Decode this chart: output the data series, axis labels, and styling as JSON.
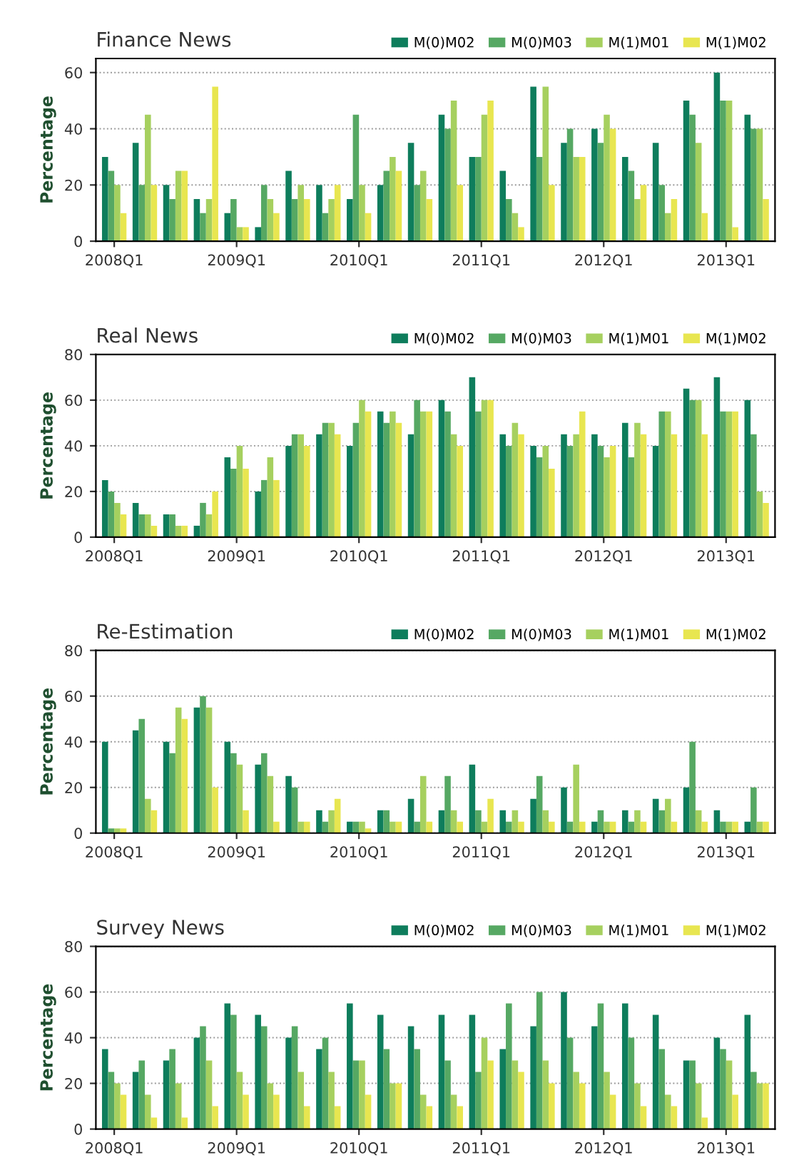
{
  "chart_data": [
    {
      "type": "bar",
      "title": "Finance News",
      "ylabel": "Percentage",
      "categories": [
        "2008Q1",
        null,
        null,
        null,
        "2009Q1",
        null,
        null,
        null,
        "2010Q1",
        null,
        null,
        null,
        "2011Q1",
        null,
        null,
        null,
        "2012Q1",
        null,
        null,
        null,
        "2013Q1",
        null
      ],
      "series": [
        {
          "name": "M(0)M02",
          "color": "#0e7d5c",
          "values": [
            30,
            35,
            20,
            15,
            10,
            5,
            25,
            20,
            15,
            20,
            35,
            45,
            30,
            25,
            55,
            35,
            40,
            30,
            35,
            50,
            60,
            45
          ]
        },
        {
          "name": "M(0)M03",
          "color": "#56a863",
          "values": [
            25,
            20,
            15,
            10,
            15,
            20,
            15,
            10,
            45,
            25,
            20,
            40,
            30,
            15,
            30,
            40,
            35,
            25,
            20,
            45,
            50,
            40
          ]
        },
        {
          "name": "M(1)M01",
          "color": "#a6d05f",
          "values": [
            20,
            45,
            25,
            15,
            5,
            15,
            20,
            15,
            20,
            30,
            25,
            50,
            45,
            10,
            55,
            30,
            45,
            15,
            10,
            35,
            50,
            40
          ]
        },
        {
          "name": "M(1)M02",
          "color": "#e8e650",
          "values": [
            10,
            20,
            25,
            55,
            5,
            10,
            15,
            20,
            10,
            25,
            15,
            20,
            50,
            5,
            20,
            30,
            40,
            20,
            15,
            10,
            5,
            15
          ]
        }
      ],
      "ylim": [
        0,
        65
      ],
      "yticks": [
        0,
        20,
        40,
        60
      ],
      "grid": "y",
      "legend": "top right"
    },
    {
      "type": "bar",
      "title": "Real News",
      "ylabel": "Percentage",
      "categories": [
        "2008Q1",
        null,
        null,
        null,
        "2009Q1",
        null,
        null,
        null,
        "2010Q1",
        null,
        null,
        null,
        "2011Q1",
        null,
        null,
        null,
        "2012Q1",
        null,
        null,
        null,
        "2013Q1",
        null
      ],
      "series": [
        {
          "name": "M(0)M02",
          "color": "#0e7d5c",
          "values": [
            25,
            15,
            10,
            5,
            35,
            20,
            40,
            45,
            40,
            55,
            45,
            60,
            70,
            45,
            40,
            45,
            45,
            50,
            40,
            65,
            70,
            60
          ]
        },
        {
          "name": "M(0)M03",
          "color": "#56a863",
          "values": [
            20,
            10,
            10,
            15,
            30,
            25,
            45,
            50,
            50,
            50,
            60,
            55,
            55,
            40,
            35,
            40,
            40,
            35,
            55,
            60,
            55,
            45
          ]
        },
        {
          "name": "M(1)M01",
          "color": "#a6d05f",
          "values": [
            15,
            10,
            5,
            10,
            40,
            35,
            45,
            50,
            60,
            55,
            55,
            45,
            60,
            50,
            40,
            45,
            35,
            50,
            55,
            60,
            55,
            20
          ]
        },
        {
          "name": "M(1)M02",
          "color": "#e8e650",
          "values": [
            10,
            5,
            5,
            20,
            30,
            25,
            40,
            45,
            55,
            50,
            55,
            40,
            60,
            45,
            30,
            55,
            40,
            45,
            45,
            45,
            55,
            15
          ]
        }
      ],
      "ylim": [
        0,
        80
      ],
      "yticks": [
        0,
        20,
        40,
        60,
        80
      ],
      "grid": "y",
      "legend": "top right"
    },
    {
      "type": "bar",
      "title": "Re-Estimation",
      "ylabel": "Percentage",
      "categories": [
        "2008Q1",
        null,
        null,
        null,
        "2009Q1",
        null,
        null,
        null,
        "2010Q1",
        null,
        null,
        null,
        "2011Q1",
        null,
        null,
        null,
        "2012Q1",
        null,
        null,
        null,
        "2013Q1",
        null
      ],
      "series": [
        {
          "name": "M(0)M02",
          "color": "#0e7d5c",
          "values": [
            40,
            45,
            40,
            55,
            40,
            30,
            25,
            10,
            5,
            10,
            15,
            10,
            30,
            10,
            15,
            20,
            5,
            10,
            15,
            20,
            10,
            5
          ]
        },
        {
          "name": "M(0)M03",
          "color": "#56a863",
          "values": [
            2,
            50,
            35,
            60,
            35,
            35,
            20,
            5,
            5,
            10,
            5,
            25,
            10,
            5,
            25,
            5,
            10,
            5,
            10,
            40,
            5,
            20
          ]
        },
        {
          "name": "M(1)M01",
          "color": "#a6d05f",
          "values": [
            2,
            15,
            55,
            55,
            30,
            25,
            5,
            10,
            5,
            5,
            25,
            10,
            5,
            10,
            10,
            30,
            5,
            10,
            15,
            10,
            5,
            5
          ]
        },
        {
          "name": "M(1)M02",
          "color": "#e8e650",
          "values": [
            2,
            10,
            50,
            20,
            10,
            5,
            5,
            15,
            2,
            5,
            5,
            5,
            15,
            5,
            5,
            5,
            5,
            5,
            5,
            5,
            5,
            5
          ]
        }
      ],
      "ylim": [
        0,
        80
      ],
      "yticks": [
        0,
        20,
        40,
        60,
        80
      ],
      "grid": "y",
      "legend": "top right"
    },
    {
      "type": "bar",
      "title": "Survey News",
      "ylabel": "Percentage",
      "categories": [
        "2008Q1",
        null,
        null,
        null,
        "2009Q1",
        null,
        null,
        null,
        "2010Q1",
        null,
        null,
        null,
        "2011Q1",
        null,
        null,
        null,
        "2012Q1",
        null,
        null,
        null,
        "2013Q1",
        null
      ],
      "series": [
        {
          "name": "M(0)M02",
          "color": "#0e7d5c",
          "values": [
            35,
            25,
            30,
            40,
            55,
            50,
            40,
            35,
            55,
            50,
            45,
            50,
            50,
            35,
            45,
            60,
            45,
            55,
            50,
            30,
            40,
            50
          ]
        },
        {
          "name": "M(0)M03",
          "color": "#56a863",
          "values": [
            25,
            30,
            35,
            45,
            50,
            45,
            45,
            40,
            30,
            35,
            35,
            30,
            25,
            55,
            60,
            40,
            55,
            40,
            35,
            30,
            35,
            25
          ]
        },
        {
          "name": "M(1)M01",
          "color": "#a6d05f",
          "values": [
            20,
            15,
            20,
            30,
            25,
            20,
            25,
            25,
            30,
            20,
            15,
            15,
            40,
            30,
            30,
            25,
            25,
            20,
            15,
            20,
            30,
            20
          ]
        },
        {
          "name": "M(1)M02",
          "color": "#e8e650",
          "values": [
            15,
            5,
            5,
            10,
            15,
            15,
            10,
            10,
            15,
            20,
            10,
            10,
            30,
            25,
            20,
            20,
            15,
            10,
            10,
            5,
            15,
            20
          ]
        }
      ],
      "ylim": [
        0,
        80
      ],
      "yticks": [
        0,
        20,
        40,
        60,
        80
      ],
      "grid": "y",
      "legend": "top right"
    }
  ]
}
